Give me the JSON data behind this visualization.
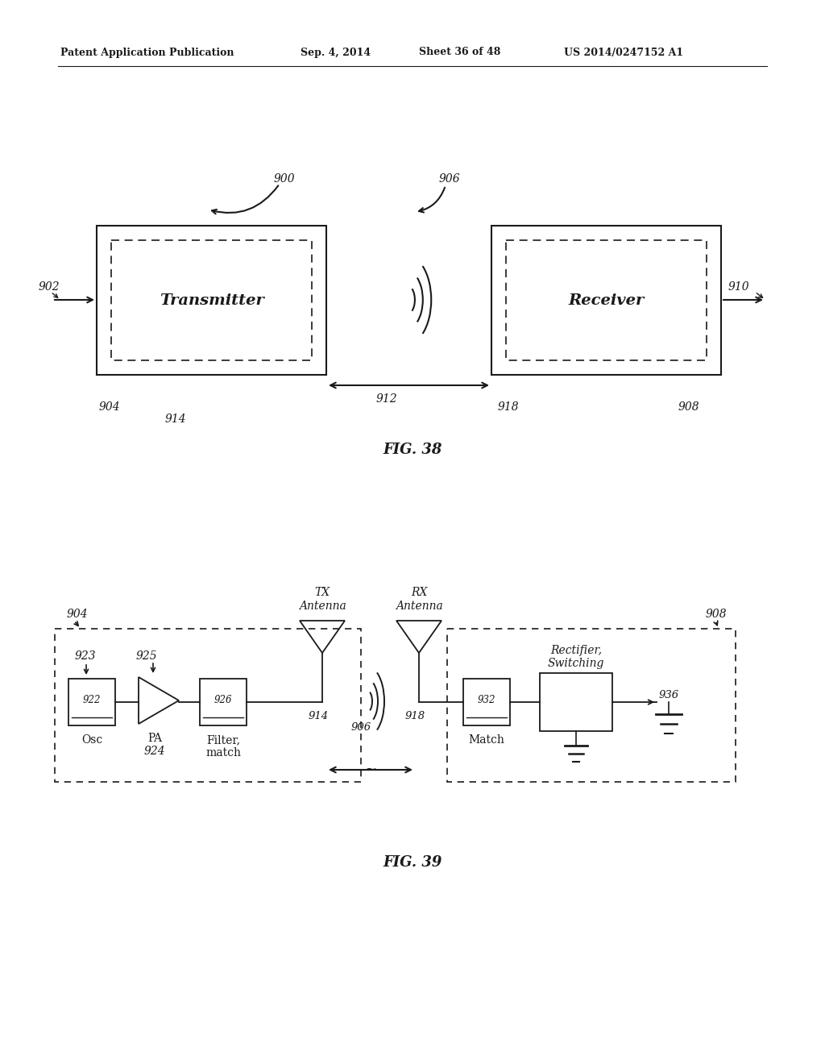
{
  "bg_color": "#ffffff",
  "header_text": "Patent Application Publication",
  "header_date": "Sep. 4, 2014",
  "header_sheet": "Sheet 36 of 48",
  "header_patent": "US 2014/0247152 A1",
  "fig38_label": "FIG. 38",
  "fig39_label": "FIG. 39",
  "font_color": "#1a1a1a",
  "line_color": "#1a1a1a"
}
